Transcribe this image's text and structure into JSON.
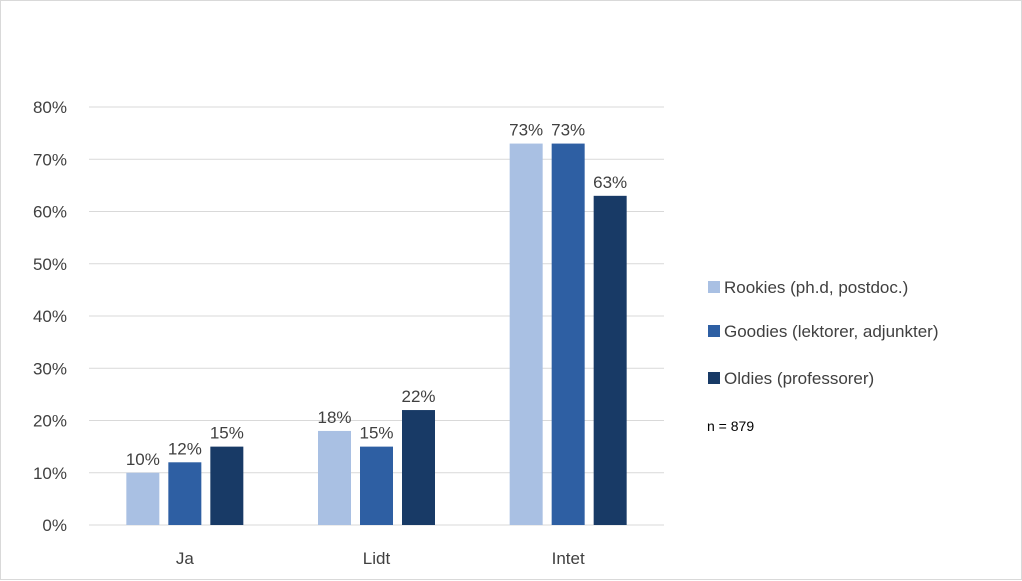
{
  "chart_data": {
    "type": "bar",
    "categories": [
      "Ja",
      "Lidt",
      "Intet"
    ],
    "series": [
      {
        "name": "Rookies (ph.d, postdoc.)",
        "values": [
          10,
          18,
          73
        ],
        "color": "#a9c0e3"
      },
      {
        "name": "Goodies (lektorer, adjunkter)",
        "values": [
          12,
          15,
          73
        ],
        "color": "#2e5fa3"
      },
      {
        "name": "Oldies (professorer)",
        "values": [
          15,
          22,
          63
        ],
        "color": "#183a66"
      }
    ],
    "y_ticks": [
      "0%",
      "10%",
      "20%",
      "30%",
      "40%",
      "50%",
      "60%",
      "70%",
      "80%"
    ],
    "ylim": [
      0,
      80
    ],
    "data_labels": [
      [
        "10%",
        "18%",
        "73%"
      ],
      [
        "12%",
        "15%",
        "73%"
      ],
      [
        "15%",
        "22%",
        "63%"
      ]
    ],
    "grid": true,
    "legend_position": "right",
    "annotation": "n = 879",
    "gridline_color": "#d9d9d9"
  }
}
